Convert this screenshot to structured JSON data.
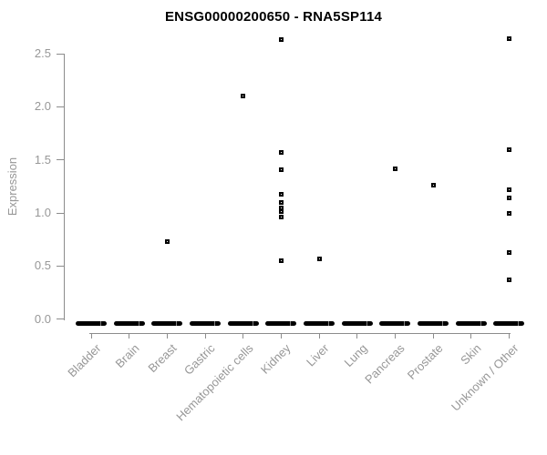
{
  "chart_data": {
    "type": "scatter",
    "title": "ENSG00000200650 - RNA5SP114",
    "ylabel": "Expression",
    "xlabel": "",
    "ylim": [
      0,
      2.5
    ],
    "yticks": [
      "0.0",
      "0.5",
      "1.0",
      "1.5",
      "2.0",
      "2.5"
    ],
    "grid": false,
    "legend": false,
    "marker_style": "open-square",
    "categories": [
      "Bladder",
      "Brain",
      "Breast",
      "Gastric",
      "Hematopoietic cells",
      "Kidney",
      "Liver",
      "Lung",
      "Pancreas",
      "Prostate",
      "Skin",
      "Unknown / Other"
    ],
    "series": [
      {
        "name": "Bladder",
        "values": []
      },
      {
        "name": "Brain",
        "values": []
      },
      {
        "name": "Breast",
        "values": [
          0.73
        ]
      },
      {
        "name": "Gastric",
        "values": []
      },
      {
        "name": "Hematopoietic cells",
        "values": [
          2.1
        ]
      },
      {
        "name": "Kidney",
        "values": [
          2.63,
          1.57,
          1.41,
          1.18,
          1.1,
          1.05,
          1.01,
          0.96,
          0.55
        ]
      },
      {
        "name": "Liver",
        "values": [
          0.57
        ]
      },
      {
        "name": "Lung",
        "values": []
      },
      {
        "name": "Pancreas",
        "values": [
          1.42
        ]
      },
      {
        "name": "Prostate",
        "values": [
          1.26
        ]
      },
      {
        "name": "Skin",
        "values": []
      },
      {
        "name": "Unknown / Other",
        "values": [
          2.64,
          1.6,
          1.22,
          1.14,
          1.0,
          0.63,
          0.37
        ]
      }
    ],
    "zero_cluster_all_categories": true,
    "zero_cluster_note": "Every category has a dense overlap of points at expression 0, drawn as a thick black dash"
  },
  "colors": {
    "marker_border": "#000000",
    "marker_fill": "#ffffff",
    "axis_line": "#8c8c8c",
    "axis_text": "#979797",
    "title_text": "#000000",
    "background": "#ffffff"
  }
}
